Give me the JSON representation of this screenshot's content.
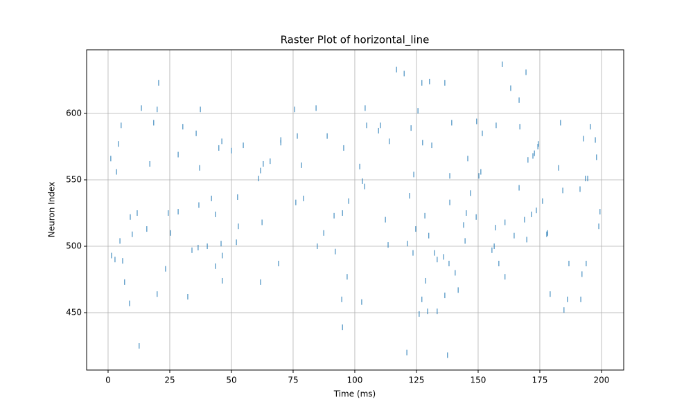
{
  "chart_data": {
    "type": "scatter",
    "title": "Raster Plot of horizontal_line",
    "x_label": "Time (ms)",
    "y_label": "Neuron Index",
    "color": "#1f77b4",
    "grid": true,
    "xlim": [
      -8.7,
      209
    ],
    "ylim": [
      406.8,
      647.9
    ],
    "xticks": [
      0,
      25,
      50,
      75,
      100,
      125,
      150,
      175,
      200
    ],
    "yticks": [
      450,
      500,
      550,
      600
    ],
    "x": [
      1.1,
      1.4,
      2.8,
      3.4,
      4.2,
      4.8,
      5.3,
      5.9,
      6.7,
      8.7,
      9,
      9.8,
      11.8,
      12.6,
      13.5,
      15.7,
      16.9,
      18.5,
      19.9,
      19.9,
      20.5,
      23.3,
      24.4,
      25.3,
      28.4,
      28.4,
      30.3,
      32.3,
      34,
      35.7,
      36.5,
      36.8,
      37.1,
      37.4,
      40.2,
      41.9,
      43.5,
      43.5,
      44.9,
      45.8,
      46.1,
      46.3,
      46.3,
      50,
      52,
      52.5,
      52.8,
      54.8,
      61,
      61.8,
      61.8,
      62.4,
      62.9,
      65.7,
      69.1,
      70,
      70,
      75.6,
      76.1,
      76.7,
      78.4,
      79.2,
      84.3,
      84.8,
      87.4,
      88.8,
      91.6,
      92.1,
      94.7,
      95,
      95,
      95.5,
      96.9,
      97.5,
      102,
      102.8,
      103.1,
      104,
      104.2,
      104.8,
      109.6,
      110.4,
      112.4,
      113.5,
      114,
      116.9,
      120,
      121.1,
      121.3,
      122.2,
      122.8,
      123.6,
      123.9,
      124.7,
      125.6,
      126.1,
      127.2,
      127.2,
      127.5,
      128.4,
      128.7,
      129.5,
      130.3,
      130,
      131.2,
      132.3,
      133.4,
      133.4,
      136,
      136.5,
      136.5,
      137.6,
      138.2,
      138.5,
      138.5,
      139.3,
      140.7,
      141.9,
      144.1,
      144.7,
      145.2,
      145.8,
      146.9,
      149.2,
      149.4,
      150.3,
      151.1,
      151.7,
      155.6,
      156.5,
      157,
      157.3,
      158.4,
      159.8,
      160.9,
      160.9,
      163.2,
      164.6,
      166.6,
      166.6,
      166.9,
      168.8,
      169.4,
      169.7,
      170.2,
      171.6,
      172.2,
      172.8,
      173.6,
      174.2,
      174.4,
      176.1,
      177.8,
      178.1,
      179.2,
      182.6,
      183.4,
      184.3,
      184.8,
      186.2,
      186.8,
      191.3,
      191.6,
      192.1,
      192.7,
      193.5,
      193.8,
      194.4,
      195.5,
      197.5,
      198,
      198.9,
      199.4
    ],
    "y": [
      566,
      493,
      490,
      556,
      577,
      504,
      591,
      489,
      473,
      457,
      522,
      509,
      525,
      425,
      604,
      513,
      562,
      593,
      464,
      603,
      623,
      483,
      525,
      510,
      526,
      569,
      590,
      462,
      497,
      585,
      499,
      531,
      559,
      603,
      500,
      536,
      524,
      485,
      574,
      502,
      579,
      474,
      493,
      572,
      503,
      537,
      515,
      576,
      551,
      557,
      473,
      518,
      562,
      564,
      487,
      580,
      578,
      603,
      533,
      583,
      561,
      536,
      604,
      500,
      510,
      583,
      523,
      496,
      460,
      525,
      439,
      574,
      477,
      534,
      560,
      458,
      549,
      545,
      604,
      591,
      587,
      591,
      520,
      501,
      579,
      633,
      630,
      420,
      502,
      538,
      589,
      495,
      554,
      513,
      602,
      449,
      623,
      460,
      578,
      523,
      474,
      451,
      624,
      508,
      576,
      495,
      451,
      490,
      492,
      623,
      463,
      418,
      487,
      553,
      533,
      593,
      480,
      467,
      516,
      504,
      525,
      566,
      540,
      522,
      594,
      553,
      556,
      585,
      497,
      500,
      514,
      591,
      487,
      637,
      518,
      477,
      619,
      508,
      610,
      544,
      590,
      520,
      631,
      505,
      565,
      524,
      568,
      570,
      527,
      575,
      577,
      534,
      509,
      510,
      464,
      559,
      593,
      542,
      452,
      460,
      487,
      543,
      460,
      479,
      581,
      551,
      487,
      551,
      590,
      580,
      567,
      515,
      526
    ]
  }
}
